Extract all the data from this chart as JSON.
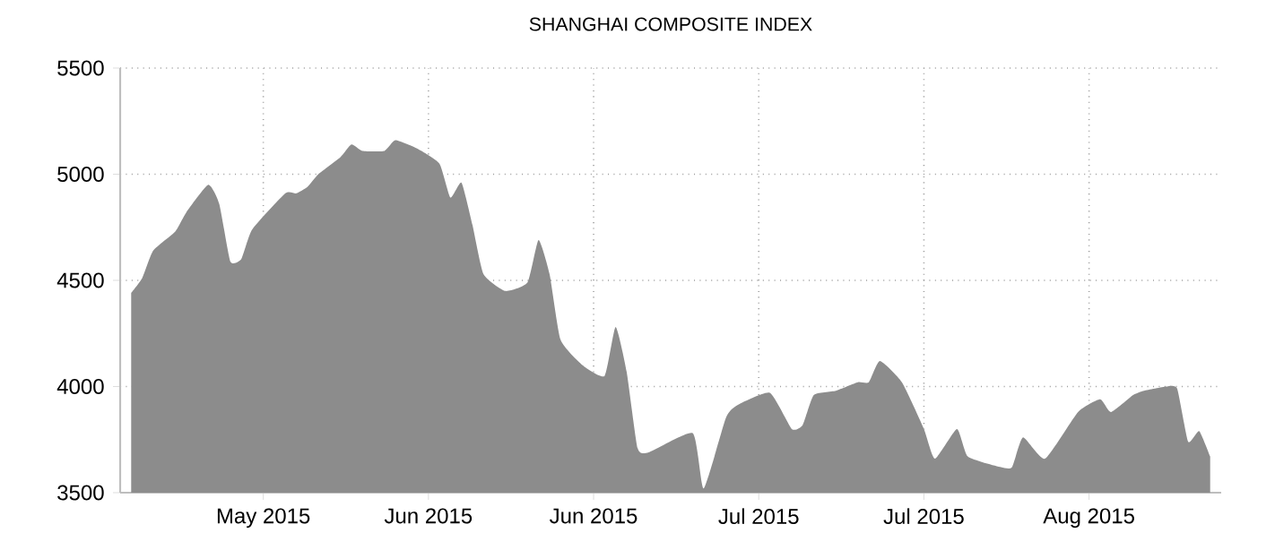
{
  "chart_data": {
    "type": "area",
    "title": "SHANGHAI COMPOSITE INDEX",
    "x": [
      "2015-05-19",
      "2015-05-20",
      "2015-05-21",
      "2015-05-23",
      "2015-05-24",
      "2015-05-26",
      "2015-05-27",
      "2015-05-28",
      "2015-05-29",
      "2015-05-30",
      "2015-06-02",
      "2015-06-03",
      "2015-06-04",
      "2015-06-05",
      "2015-06-07",
      "2015-06-08",
      "2015-06-09",
      "2015-06-11",
      "2015-06-12",
      "2015-06-14",
      "2015-06-16",
      "2015-06-17",
      "2015-06-18",
      "2015-06-19",
      "2015-06-20",
      "2015-06-22",
      "2015-06-24",
      "2015-06-25",
      "2015-06-26",
      "2015-06-27",
      "2015-06-29",
      "2015-07-01",
      "2015-07-02",
      "2015-07-03",
      "2015-07-04",
      "2015-07-05",
      "2015-07-09",
      "2015-07-10",
      "2015-07-12",
      "2015-07-13",
      "2015-07-16",
      "2015-07-18",
      "2015-07-19",
      "2015-07-20",
      "2015-07-22",
      "2015-07-24",
      "2015-07-25",
      "2015-07-26",
      "2015-07-28",
      "2015-07-30",
      "2015-07-31",
      "2015-08-02",
      "2015-08-03",
      "2015-08-06",
      "2015-08-07",
      "2015-08-08",
      "2015-08-10",
      "2015-08-13",
      "2015-08-15",
      "2015-08-16",
      "2015-08-18",
      "2015-08-19",
      "2015-08-21",
      "2015-08-22",
      "2015-08-23",
      "2015-08-24",
      "2015-08-25"
    ],
    "series": [
      {
        "color": "#8c8c8c",
        "values": [
          4440,
          4510,
          4640,
          4730,
          4820,
          4950,
          4860,
          4590,
          4600,
          4740,
          4910,
          4910,
          4940,
          5000,
          5080,
          5140,
          5110,
          5110,
          5160,
          5120,
          5050,
          4890,
          4960,
          4760,
          4530,
          4450,
          4490,
          4690,
          4530,
          4220,
          4100,
          4050,
          4280,
          4070,
          3710,
          3690,
          3780,
          3520,
          3850,
          3910,
          3970,
          3800,
          3820,
          3960,
          3980,
          4020,
          4020,
          4120,
          4020,
          3800,
          3660,
          3800,
          3670,
          3620,
          3620,
          3760,
          3660,
          3880,
          3940,
          3880,
          3960,
          3980,
          4000,
          3990,
          3740,
          3790,
          3670
        ]
      }
    ],
    "xlim": [
      "2015-05-18",
      "2015-08-26"
    ],
    "xticks": [
      {
        "value": "2015-05-31",
        "label": "May 2015"
      },
      {
        "value": "2015-06-15",
        "label": "Jun 2015"
      },
      {
        "value": "2015-06-30",
        "label": "Jun 2015"
      },
      {
        "value": "2015-07-15",
        "label": "Jul 2015"
      },
      {
        "value": "2015-07-30",
        "label": "Jul 2015"
      },
      {
        "value": "2015-08-14",
        "label": "Aug 2015"
      }
    ],
    "ylim": [
      3500,
      5500
    ],
    "yticks": [
      3500,
      4000,
      4500,
      5000,
      5500
    ],
    "grid": true
  }
}
